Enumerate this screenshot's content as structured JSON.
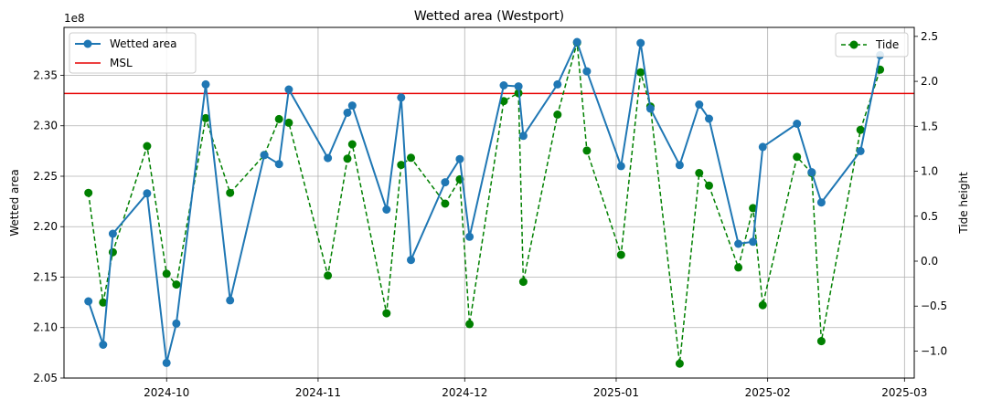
{
  "chart_data": {
    "type": "line",
    "title": "Wetted area (Westport)",
    "xlabel": "",
    "ylabel": "Wetted area",
    "y2label": "Tide height",
    "y_offset_text": "1e8",
    "xlim": [
      "2024-09-10",
      "2025-03-03"
    ],
    "ylim": [
      2.05,
      2.3975
    ],
    "y2lim": [
      -1.3,
      2.6
    ],
    "x_ticks": [
      {
        "date": "2024-10-01",
        "label": "2024-10"
      },
      {
        "date": "2024-11-01",
        "label": "2024-11"
      },
      {
        "date": "2024-12-01",
        "label": "2024-12"
      },
      {
        "date": "2025-01-01",
        "label": "2025-01"
      },
      {
        "date": "2025-02-01",
        "label": "2025-02"
      },
      {
        "date": "2025-03-01",
        "label": "2025-03"
      }
    ],
    "y_ticks": [
      "2.05",
      "2.10",
      "2.15",
      "2.20",
      "2.25",
      "2.30",
      "2.35"
    ],
    "y2_ticks": [
      "−1.0",
      "−0.5",
      "0.0",
      "0.5",
      "1.0",
      "1.5",
      "2.0",
      "2.5"
    ],
    "grid": true,
    "msl": 2.332,
    "legend_left": {
      "placement": "upper-left",
      "entries": [
        "Wetted area",
        "MSL"
      ]
    },
    "legend_right": {
      "placement": "upper-right",
      "entries": [
        "Tide"
      ]
    },
    "series": [
      {
        "name": "Wetted area",
        "axis": "left",
        "color": "#1f77b4",
        "style": "solid",
        "points": [
          [
            "2024-09-15",
            2.126
          ],
          [
            "2024-09-18",
            2.083
          ],
          [
            "2024-09-20",
            2.193
          ],
          [
            "2024-09-27",
            2.233
          ],
          [
            "2024-10-01",
            2.065
          ],
          [
            "2024-10-03",
            2.104
          ],
          [
            "2024-10-09",
            2.341
          ],
          [
            "2024-10-14",
            2.127
          ],
          [
            "2024-10-21",
            2.271
          ],
          [
            "2024-10-24",
            2.262
          ],
          [
            "2024-10-26",
            2.336
          ],
          [
            "2024-11-03",
            2.268
          ],
          [
            "2024-11-07",
            2.313
          ],
          [
            "2024-11-08",
            2.32
          ],
          [
            "2024-11-15",
            2.217
          ],
          [
            "2024-11-18",
            2.328
          ],
          [
            "2024-11-20",
            2.167
          ],
          [
            "2024-11-27",
            2.244
          ],
          [
            "2024-11-30",
            2.267
          ],
          [
            "2024-12-02",
            2.19
          ],
          [
            "2024-12-09",
            2.34
          ],
          [
            "2024-12-12",
            2.339
          ],
          [
            "2024-12-13",
            2.29
          ],
          [
            "2024-12-20",
            2.341
          ],
          [
            "2024-12-24",
            2.383
          ],
          [
            "2024-12-26",
            2.354
          ],
          [
            "2025-01-02",
            2.26
          ],
          [
            "2025-01-06",
            2.382
          ],
          [
            "2025-01-08",
            2.317
          ],
          [
            "2025-01-14",
            2.261
          ],
          [
            "2025-01-18",
            2.321
          ],
          [
            "2025-01-20",
            2.307
          ],
          [
            "2025-01-26",
            2.183
          ],
          [
            "2025-01-29",
            2.185
          ],
          [
            "2025-01-31",
            2.279
          ],
          [
            "2025-02-07",
            2.302
          ],
          [
            "2025-02-10",
            2.254
          ],
          [
            "2025-02-12",
            2.224
          ],
          [
            "2025-02-20",
            2.275
          ],
          [
            "2025-02-24",
            2.37
          ]
        ]
      },
      {
        "name": "Tide",
        "axis": "right",
        "color": "#008000",
        "style": "dashed",
        "points": [
          [
            "2024-09-15",
            0.76
          ],
          [
            "2024-09-18",
            -0.46
          ],
          [
            "2024-09-20",
            0.1
          ],
          [
            "2024-09-27",
            1.28
          ],
          [
            "2024-10-01",
            -0.14
          ],
          [
            "2024-10-03",
            -0.26
          ],
          [
            "2024-10-09",
            1.59
          ],
          [
            "2024-10-14",
            0.76
          ],
          [
            "2024-10-21",
            1.18
          ],
          [
            "2024-10-24",
            1.58
          ],
          [
            "2024-10-26",
            1.54
          ],
          [
            "2024-11-03",
            -0.16
          ],
          [
            "2024-11-07",
            1.14
          ],
          [
            "2024-11-08",
            1.3
          ],
          [
            "2024-11-15",
            -0.58
          ],
          [
            "2024-11-18",
            1.07
          ],
          [
            "2024-11-20",
            1.15
          ],
          [
            "2024-11-27",
            0.64
          ],
          [
            "2024-11-30",
            0.91
          ],
          [
            "2024-12-02",
            -0.7
          ],
          [
            "2024-12-09",
            1.78
          ],
          [
            "2024-12-12",
            1.87
          ],
          [
            "2024-12-13",
            -0.23
          ],
          [
            "2024-12-20",
            1.63
          ],
          [
            "2024-12-24",
            2.43
          ],
          [
            "2024-12-26",
            1.23
          ],
          [
            "2025-01-02",
            0.07
          ],
          [
            "2025-01-06",
            2.1
          ],
          [
            "2025-01-08",
            1.72
          ],
          [
            "2025-01-14",
            -1.14
          ],
          [
            "2025-01-18",
            0.98
          ],
          [
            "2025-01-20",
            0.84
          ],
          [
            "2025-01-26",
            -0.07
          ],
          [
            "2025-01-29",
            0.59
          ],
          [
            "2025-01-31",
            -0.49
          ],
          [
            "2025-02-07",
            1.16
          ],
          [
            "2025-02-10",
            0.98
          ],
          [
            "2025-02-12",
            -0.89
          ],
          [
            "2025-02-20",
            1.46
          ],
          [
            "2025-02-24",
            2.13
          ]
        ]
      }
    ]
  }
}
